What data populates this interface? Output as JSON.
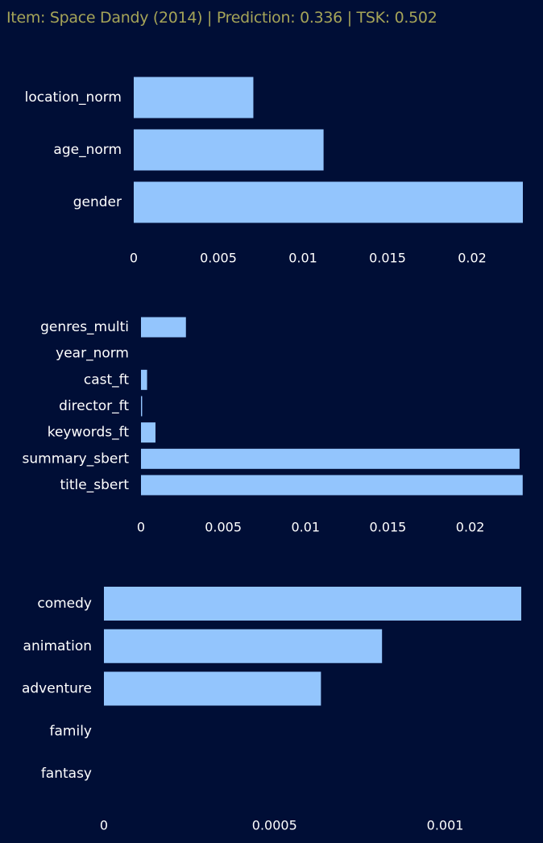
{
  "header": {
    "title": "Item: Space Dandy (2014) | Prediction: 0.336 | TSK: 0.502"
  },
  "colors": {
    "background": "#000e36",
    "bar": "#93c5fd",
    "text": "#ffffff",
    "title": "#a5a458"
  },
  "chart_data": [
    {
      "type": "bar",
      "orientation": "horizontal",
      "categories": [
        "location_norm",
        "age_norm",
        "gender"
      ],
      "values": [
        0.00707,
        0.01122,
        0.023
      ],
      "xticks": [
        0,
        0.005,
        0.01,
        0.015,
        0.02
      ],
      "xtick_labels": [
        "0",
        "0.005",
        "0.01",
        "0.015",
        "0.02"
      ],
      "xlim": [
        0,
        0.023
      ],
      "grid": false
    },
    {
      "type": "bar",
      "orientation": "horizontal",
      "categories": [
        "genres_multi",
        "year_norm",
        "cast_ft",
        "director_ft",
        "keywords_ft",
        "summary_sbert",
        "title_sbert"
      ],
      "values": [
        0.00273,
        0.0,
        0.00037,
        7e-05,
        0.00088,
        0.023,
        0.02319
      ],
      "xticks": [
        0,
        0.005,
        0.01,
        0.015,
        0.02
      ],
      "xtick_labels": [
        "0",
        "0.005",
        "0.01",
        "0.015",
        "0.02"
      ],
      "xlim": [
        0,
        0.0232
      ],
      "grid": false
    },
    {
      "type": "bar",
      "orientation": "horizontal",
      "categories": [
        "comedy",
        "animation",
        "adventure",
        "family",
        "fantasy"
      ],
      "values": [
        0.001223,
        0.000815,
        0.000636,
        0.0,
        0.0
      ],
      "xticks": [
        0,
        0.0005,
        0.001
      ],
      "xtick_labels": [
        "0",
        "0.0005",
        "0.001"
      ],
      "xlim": [
        0,
        0.001223
      ],
      "grid": false
    }
  ]
}
